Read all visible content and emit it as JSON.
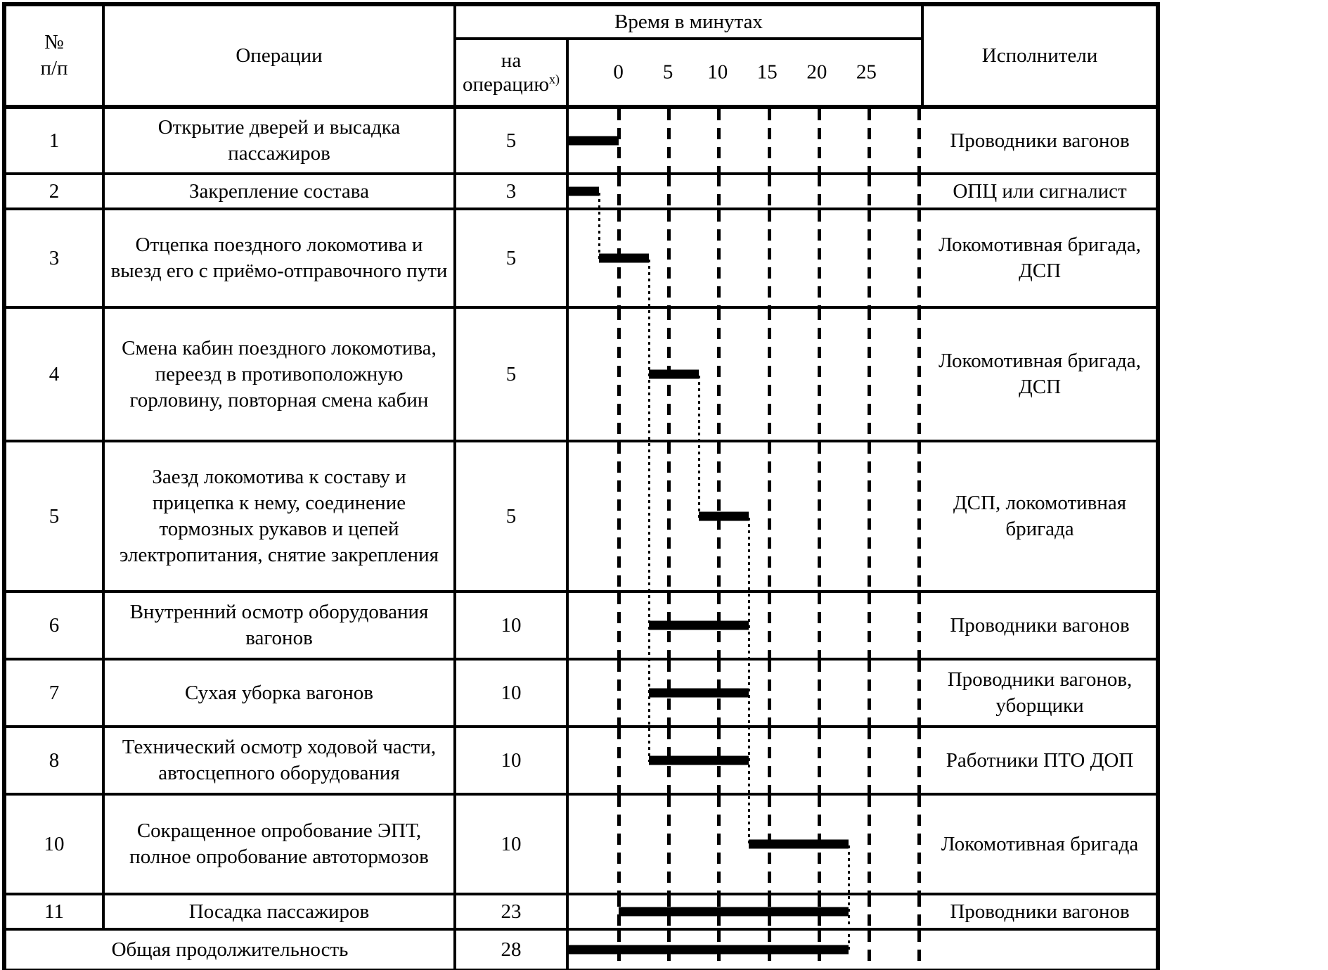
{
  "table": {
    "header": {
      "num": "№\nп/п",
      "operations": "Операции",
      "time_title": "Время в минутах",
      "per_operation_line1": "на",
      "per_operation_line2": "операцию",
      "per_operation_sup": "х)",
      "executors": "Исполнители"
    },
    "rows": [
      {
        "num": "1",
        "operation": "Открытие дверей и высадка пассажиров",
        "duration": "5",
        "executor": "Проводники вагонов",
        "bar": {
          "start": -5,
          "end": 0
        }
      },
      {
        "num": "2",
        "operation": "Закрепление состава",
        "duration": "3",
        "executor": "ОПЦ или сигналист",
        "bar": {
          "start": -5,
          "end": -2
        }
      },
      {
        "num": "3",
        "operation": "Отцепка поездного локомотива и выезд его с приёмо-отправочного пути",
        "duration": "5",
        "executor": "Локомотивная бригада, ДСП",
        "bar": {
          "start": -2,
          "end": 3
        }
      },
      {
        "num": "4",
        "operation": "Смена кабин поездного локомотива, переезд в противоположную горловину, повторная смена кабин",
        "duration": "5",
        "executor": "Локомотивная бригада, ДСП",
        "bar": {
          "start": 3,
          "end": 8
        }
      },
      {
        "num": "5",
        "operation": "Заезд локомотива к составу и прицепка к нему, соединение тормозных рукавов и цепей электропитания, снятие закрепления",
        "duration": "5",
        "executor": "ДСП, локомотивная бригада",
        "bar": {
          "start": 8,
          "end": 13
        }
      },
      {
        "num": "6",
        "operation": "Внутренний осмотр оборудования вагонов",
        "duration": "10",
        "executor": "Проводники вагонов",
        "bar": {
          "start": 3,
          "end": 13
        }
      },
      {
        "num": "7",
        "operation": "Сухая уборка вагонов",
        "duration": "10",
        "executor": "Проводники вагонов, уборщики",
        "bar": {
          "start": 3,
          "end": 13
        }
      },
      {
        "num": "8",
        "operation": "Технический осмотр ходовой части, автосцепного оборудования",
        "duration": "10",
        "executor": "Работники ПТО ДОП",
        "bar": {
          "start": 3,
          "end": 13
        }
      },
      {
        "num": "10",
        "operation": "Сокращенное опробование ЭПТ, полное опробование автотормозов",
        "duration": "10",
        "executor": "Локомотивная бригада",
        "bar": {
          "start": 13,
          "end": 23
        }
      },
      {
        "num": "11",
        "operation": "Посадка пассажиров",
        "duration": "23",
        "executor": "Проводники вагонов",
        "bar": {
          "start": 0,
          "end": 23
        }
      },
      {
        "total": true,
        "operation": "Общая продолжительность",
        "duration": "28",
        "executor": "",
        "bar": {
          "start": -5,
          "end": 23
        }
      }
    ]
  },
  "chart_data": {
    "type": "bar",
    "subtype": "gantt",
    "title": "Время в минутах",
    "xlabel": "Время в минутах",
    "x_ticks": [
      0,
      5,
      10,
      15,
      20,
      25
    ],
    "grid_ticks": [
      0,
      5,
      10,
      15,
      20,
      25,
      30
    ],
    "xlim": [
      -5,
      30.5
    ],
    "grid": "dashed-vertical",
    "bar_color": "#000000",
    "categories": [
      "Открытие дверей и высадка пассажиров",
      "Закрепление состава",
      "Отцепка поездного локомотива и выезд его с приёмо-отправочного пути",
      "Смена кабин поездного локомотива, переезд в противоположную горловину, повторная смена кабин",
      "Заезд локомотива к составу и прицепка к нему, соединение тормозных рукавов и цепей электропитания, снятие закрепления",
      "Внутренний осмотр оборудования вагонов",
      "Сухая уборка вагонов",
      "Технический осмотр ходовой части, автосцепного оборудования",
      "Сокращенное опробование ЭПТ, полное опробование автотормозов",
      "Посадка пассажиров",
      "Общая продолжительность"
    ],
    "bars": [
      {
        "start": -5,
        "end": 0,
        "duration_min": 5
      },
      {
        "start": -5,
        "end": -2,
        "duration_min": 3
      },
      {
        "start": -2,
        "end": 3,
        "duration_min": 5
      },
      {
        "start": 3,
        "end": 8,
        "duration_min": 5
      },
      {
        "start": 8,
        "end": 13,
        "duration_min": 5
      },
      {
        "start": 3,
        "end": 13,
        "duration_min": 10
      },
      {
        "start": 3,
        "end": 13,
        "duration_min": 10
      },
      {
        "start": 3,
        "end": 13,
        "duration_min": 10
      },
      {
        "start": 13,
        "end": 23,
        "duration_min": 10
      },
      {
        "start": 0,
        "end": 23,
        "duration_min": 23
      },
      {
        "start": -5,
        "end": 23,
        "duration_min": 28
      }
    ],
    "connectors": [
      {
        "x": -2,
        "from": 1,
        "to": 2
      },
      {
        "x": 3,
        "from": 2,
        "to": 7
      },
      {
        "x": 8,
        "from": 3,
        "to": 4
      },
      {
        "x": 13,
        "from": 4,
        "to": 8
      },
      {
        "x": 23,
        "from": 8,
        "to": 10
      }
    ]
  }
}
